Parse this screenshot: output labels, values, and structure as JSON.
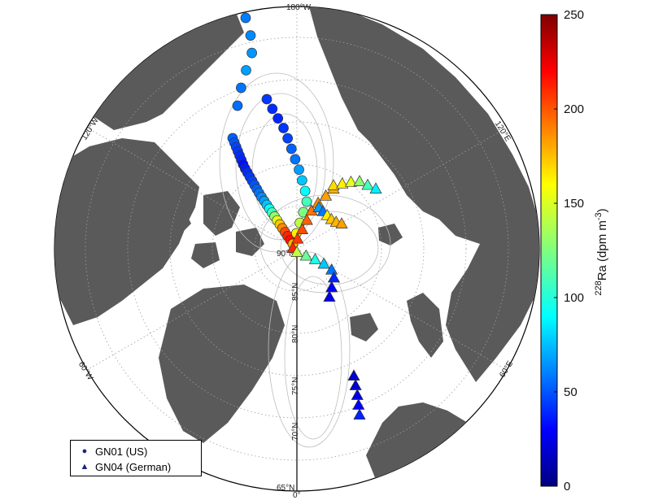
{
  "map": {
    "lon_labels": [
      "180°W",
      "120°W",
      "120°E",
      "60°W",
      "60°E",
      "0°"
    ],
    "lat_labels": [
      "90°N",
      "85°N",
      "80°N",
      "75°N",
      "70°N",
      "65°N"
    ]
  },
  "legend": {
    "items": [
      {
        "marker": "circle",
        "label": "GN01 (US)"
      },
      {
        "marker": "triangle",
        "label": "GN04 (German)"
      }
    ]
  },
  "colorbar": {
    "ticks": [
      "0",
      "50",
      "100",
      "150",
      "200",
      "250"
    ],
    "label": "228Ra (dpm m-3)",
    "min": 0,
    "max": 250,
    "colormap": "jet"
  },
  "colors": {
    "land": "#5a5a5a",
    "ocean": "#ffffff",
    "contour": "#bdbdbd",
    "graticule": "#9e9e9e"
  },
  "stations": {
    "gn01_circles_ra228": [
      62,
      65,
      68,
      70,
      60,
      58,
      55,
      52,
      48,
      45,
      42,
      40,
      35,
      38,
      42,
      45,
      48,
      52,
      55,
      60,
      65,
      70,
      80,
      95,
      110,
      130,
      150,
      170,
      185,
      200,
      210,
      215,
      220,
      45,
      42,
      40,
      44,
      48,
      55,
      60,
      70,
      80,
      95,
      110,
      125,
      140,
      160,
      175
    ],
    "gn04_triangles_ra228": [
      210,
      205,
      200,
      195,
      190,
      185,
      180,
      175,
      165,
      160,
      150,
      130,
      110,
      90,
      70,
      60,
      160,
      170,
      175,
      180,
      140,
      120,
      100,
      80,
      60,
      40,
      30,
      25,
      20,
      20,
      25,
      30,
      40,
      50,
      60,
      70
    ]
  }
}
